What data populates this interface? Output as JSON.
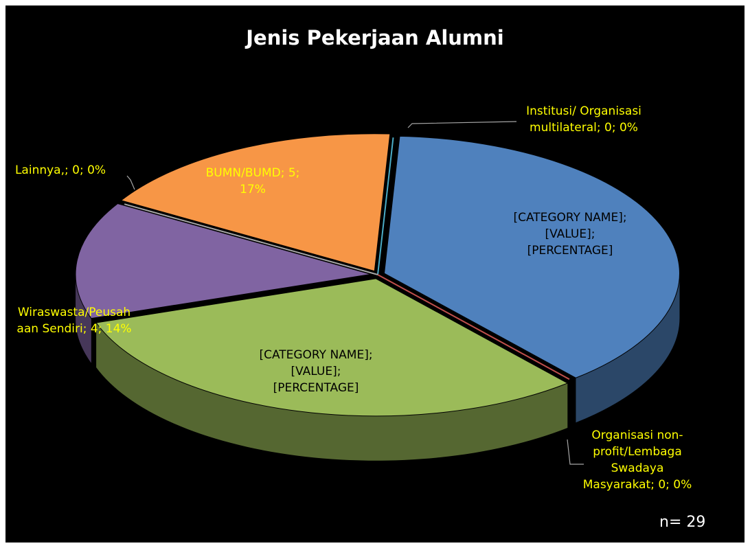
{
  "chart_data": {
    "type": "pie3d",
    "title": "Jenis Pekerjaan Alumni",
    "note": "n= 29",
    "values": [
      0,
      11,
      0,
      9,
      4,
      0,
      5
    ],
    "colors": [
      "#4bacc6",
      "#4f81bd",
      "#c0504d",
      "#9bbb59",
      "#8064a2",
      "#a5a5a5",
      "#f79646"
    ],
    "value_labels": [
      "Institusi/ Organisasi\nmultilateral; 0; 0%",
      "[CATEGORY NAME];\n[VALUE];\n[PERCENTAGE]",
      "Organisasi non-\nprofit/Lembaga\nSwadaya\nMasyarakat; 0; 0%",
      "[CATEGORY NAME];\n[VALUE];\n[PERCENTAGE]",
      "Wiraswasta/Peusah\naan Sendiri; 4; 14%",
      "Lainnya,; 0; 0%",
      "BUMN/BUMD; 5;\n17%"
    ],
    "label_colors": [
      "#ffff00",
      "#000000",
      "#ffff00",
      "#000000",
      "#ffff00",
      "#ffff00",
      "#ffff00"
    ]
  }
}
